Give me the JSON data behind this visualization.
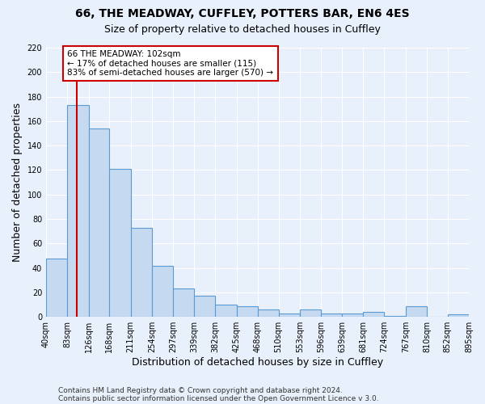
{
  "title1": "66, THE MEADWAY, CUFFLEY, POTTERS BAR, EN6 4ES",
  "title2": "Size of property relative to detached houses in Cuffley",
  "xlabel": "Distribution of detached houses by size in Cuffley",
  "ylabel": "Number of detached properties",
  "bar_labels": [
    "40sqm",
    "83sqm",
    "126sqm",
    "168sqm",
    "211sqm",
    "254sqm",
    "297sqm",
    "339sqm",
    "382sqm",
    "425sqm",
    "468sqm",
    "510sqm",
    "553sqm",
    "596sqm",
    "639sqm",
    "681sqm",
    "724sqm",
    "767sqm",
    "810sqm",
    "852sqm",
    "895sqm"
  ],
  "bar_values": [
    48,
    173,
    154,
    121,
    73,
    42,
    23,
    17,
    10,
    9,
    6,
    3,
    6,
    3,
    3,
    4,
    1,
    9,
    0,
    2
  ],
  "bar_edges": [
    40,
    83,
    126,
    168,
    211,
    254,
    297,
    339,
    382,
    425,
    468,
    510,
    553,
    596,
    639,
    681,
    724,
    767,
    810,
    852,
    895
  ],
  "bar_color": "#c5d9f0",
  "bar_edge_color": "#5b9bd5",
  "red_line_x": 102,
  "ylim": [
    0,
    220
  ],
  "yticks": [
    0,
    20,
    40,
    60,
    80,
    100,
    120,
    140,
    160,
    180,
    200,
    220
  ],
  "annotation_text": "66 THE MEADWAY: 102sqm\n← 17% of detached houses are smaller (115)\n83% of semi-detached houses are larger (570) →",
  "annotation_box_color": "#ffffff",
  "annotation_box_edge": "#cc0000",
  "footer1": "Contains HM Land Registry data © Crown copyright and database right 2024.",
  "footer2": "Contains public sector information licensed under the Open Government Licence v 3.0.",
  "background_color": "#e8f0fb"
}
